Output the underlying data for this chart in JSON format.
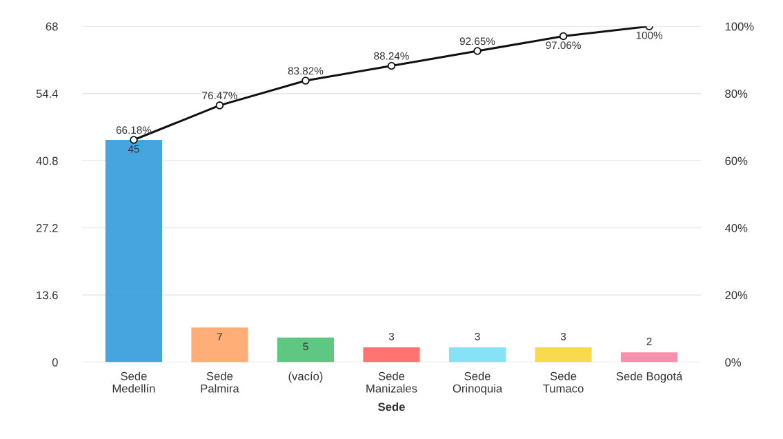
{
  "chart_data": {
    "type": "bar",
    "xlabel": "Sede",
    "categories": [
      "Sede\nMedellín",
      "Sede\nPalmira",
      "(vacío)",
      "Sede\nManizales",
      "Sede\nOrinoquia",
      "Sede\nTumaco",
      "Sede Bogotá"
    ],
    "series": [
      {
        "colors": [
          "#3c9fdc",
          "#ffaa70",
          "#55c47a",
          "#ff6b6b",
          "#80e1f5",
          "#f7d845",
          "#f78aa8"
        ],
        "values": [
          45,
          7,
          5,
          3,
          3,
          3,
          2
        ],
        "value_labels": [
          "45",
          "7",
          "5",
          "3",
          "3",
          "3",
          "2"
        ]
      },
      {
        "type": "line",
        "axis": "y2",
        "color": "#111111",
        "marker": "circle",
        "values": [
          66.18,
          76.47,
          83.82,
          88.24,
          92.65,
          97.06,
          100
        ],
        "value_labels": [
          "66.18%",
          "76.47%",
          "83.82%",
          "88.24%",
          "92.65%",
          "97.06%",
          "100%"
        ]
      }
    ],
    "ylim": [
      0,
      68
    ],
    "yticks": [
      0,
      13.6,
      27.2,
      40.8,
      54.4,
      68
    ],
    "y2lim": [
      0,
      100
    ],
    "y2ticks": [
      {
        "value": 0,
        "label": "0%"
      },
      {
        "value": 20,
        "label": "20%"
      },
      {
        "value": 40,
        "label": "40%"
      },
      {
        "value": 60,
        "label": "60%"
      },
      {
        "value": 80,
        "label": "80%"
      },
      {
        "value": 100,
        "label": "100%"
      }
    ],
    "grid": "y"
  }
}
